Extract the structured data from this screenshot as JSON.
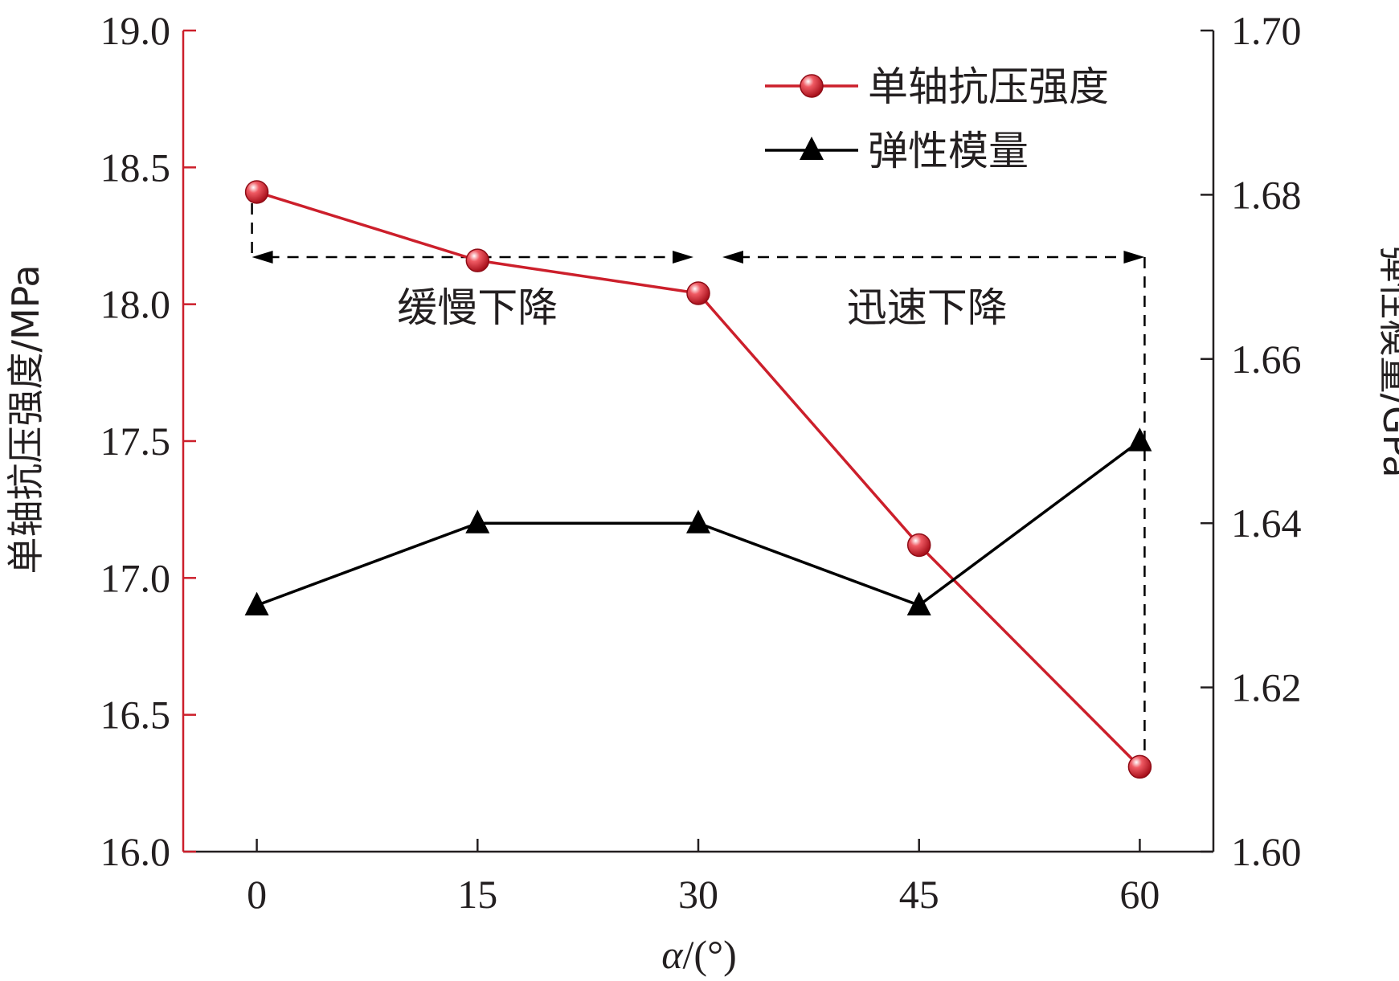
{
  "chart_data": {
    "type": "line",
    "x": [
      0,
      15,
      30,
      45,
      60
    ],
    "xlabel_symbol": "α",
    "xlabel_unit": "/(°)",
    "xlim": [
      -5,
      65
    ],
    "xticks": [
      "0",
      "15",
      "30",
      "45",
      "60"
    ],
    "y_left": {
      "label": "单轴抗压强度/MPa",
      "lim": [
        16.0,
        19.0
      ],
      "ticks": [
        "16.0",
        "16.5",
        "17.0",
        "17.5",
        "18.0",
        "18.5",
        "19.0"
      ],
      "color": "#cc1f2b"
    },
    "y_right": {
      "label": "弹性模量/GPa",
      "lim": [
        1.6,
        1.7
      ],
      "ticks": [
        "1.60",
        "1.62",
        "1.64",
        "1.66",
        "1.68",
        "1.70"
      ],
      "color": "#231f20"
    },
    "series": [
      {
        "name": "单轴抗压强度",
        "axis": "left",
        "marker": "circle",
        "color": "#cc1f2b",
        "values": [
          18.41,
          18.16,
          18.04,
          17.12,
          16.31
        ]
      },
      {
        "name": "弹性模量",
        "axis": "right",
        "marker": "triangle",
        "color": "#000000",
        "values": [
          1.63,
          1.64,
          1.64,
          1.63,
          1.65
        ]
      }
    ],
    "legend_placement": "top-right",
    "annotations": [
      {
        "text": "缓慢下降",
        "x_from": 0,
        "x_to": 30
      },
      {
        "text": "迅速下降",
        "x_from": 30,
        "x_to": 60
      }
    ],
    "grid": false
  }
}
